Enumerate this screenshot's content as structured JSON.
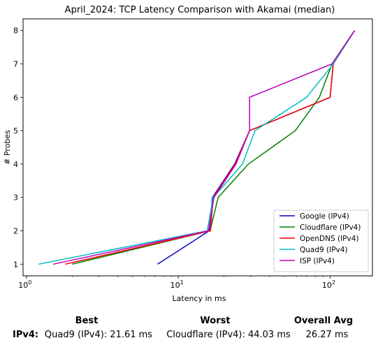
{
  "chart_data": {
    "type": "line",
    "title": "April_2024: TCP Latency Comparison with Akamai (median)",
    "xlabel": "Latency in ms",
    "ylabel": "# Probes",
    "xscale": "log",
    "xlim": [
      0.95,
      190
    ],
    "ylim": [
      0.65,
      8.35
    ],
    "x_ticks": [
      1,
      10,
      100
    ],
    "x_tick_labels": [
      "10^0",
      "10^1",
      "10^2"
    ],
    "y_ticks": [
      1,
      2,
      3,
      4,
      5,
      6,
      7,
      8
    ],
    "grid": false,
    "legend_position": "lower-right",
    "series": [
      {
        "name": "Google (IPv4)",
        "color": "#0000cc",
        "x": [
          7.3,
          16.0,
          16.8,
          23.5,
          29.5,
          100,
          105,
          145
        ],
        "y": [
          1,
          2,
          3,
          4,
          5,
          6,
          7,
          8
        ]
      },
      {
        "name": "Cloudflare (IPv4)",
        "color": "#008000",
        "x": [
          2.0,
          16.2,
          18.3,
          29.0,
          59.0,
          85.0,
          103,
          145
        ],
        "y": [
          1,
          2,
          3,
          4,
          5,
          6,
          7,
          8
        ]
      },
      {
        "name": "OpenDNS (IPv4)",
        "color": "#ff0000",
        "x": [
          1.8,
          16.3,
          17.0,
          23.7,
          29.5,
          100,
          105,
          145
        ],
        "y": [
          1,
          2,
          3,
          4,
          5,
          6,
          7,
          8
        ]
      },
      {
        "name": "Quad9 (IPv4)",
        "color": "#00bfbf",
        "x": [
          1.2,
          15.5,
          17.0,
          26.5,
          32.0,
          70.0,
          105,
          145
        ],
        "y": [
          1,
          2,
          3,
          4,
          5,
          6,
          7,
          8
        ]
      },
      {
        "name": "ISP (IPv4)",
        "color": "#bf00bf",
        "x": [
          1.5,
          15.8,
          17.2,
          24.0,
          29.5,
          29.5,
          103,
          145
        ],
        "y": [
          1,
          2,
          3,
          4,
          5,
          6,
          7,
          8
        ]
      }
    ]
  },
  "summary": {
    "headers": {
      "best": "Best",
      "worst": "Worst",
      "overall": "Overall Avg"
    },
    "row_label": "IPv4:",
    "best": "Quad9 (IPv4): 21.61 ms",
    "worst": "Cloudflare (IPv4): 44.03 ms",
    "overall": "26.27 ms"
  }
}
